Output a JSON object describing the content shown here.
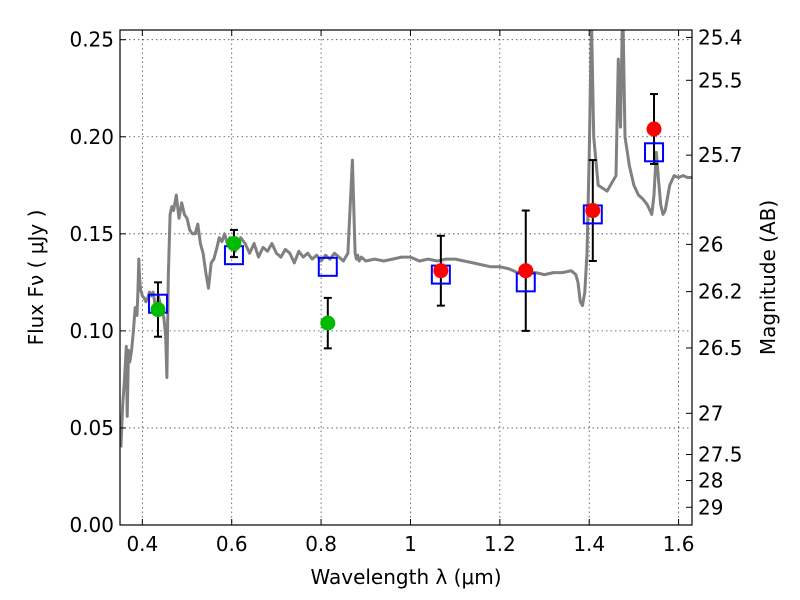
{
  "chart_data": {
    "type": "scatter",
    "title": "",
    "xlabel": "Wavelength  λ (μm)",
    "ylabel": "Flux  Fν  ( μJy )",
    "y2label": "Magnitude (AB)",
    "xlim": [
      0.35,
      1.63
    ],
    "ylim": [
      0.0,
      0.255
    ],
    "grid": true,
    "xticks": [
      {
        "value": 0.4,
        "label": "0.4"
      },
      {
        "value": 0.6,
        "label": "0.6"
      },
      {
        "value": 0.8,
        "label": "0.8"
      },
      {
        "value": 1.0,
        "label": "1"
      },
      {
        "value": 1.2,
        "label": "1.2"
      },
      {
        "value": 1.4,
        "label": "1.4"
      },
      {
        "value": 1.6,
        "label": "1.6"
      }
    ],
    "yticks": [
      {
        "value": 0.0,
        "label": "0.00"
      },
      {
        "value": 0.05,
        "label": "0.05"
      },
      {
        "value": 0.1,
        "label": "0.10"
      },
      {
        "value": 0.15,
        "label": "0.15"
      },
      {
        "value": 0.2,
        "label": "0.20"
      },
      {
        "value": 0.25,
        "label": "0.25"
      }
    ],
    "y2ticks": [
      {
        "value": 25.4,
        "label": "25.4"
      },
      {
        "value": 25.5,
        "label": "25.5"
      },
      {
        "value": 25.7,
        "label": "25.7"
      },
      {
        "value": 26.0,
        "label": "26"
      },
      {
        "value": 26.2,
        "label": "26.2"
      },
      {
        "value": 26.5,
        "label": "26.5"
      },
      {
        "value": 27.0,
        "label": "27"
      },
      {
        "value": 27.5,
        "label": "27.5"
      },
      {
        "value": 28.0,
        "label": "28"
      },
      {
        "value": 29.0,
        "label": "29"
      }
    ],
    "colors": {
      "model": "#808080",
      "model_points": "#0000ff",
      "green_points": "#00bb00",
      "red_points": "#ff0000",
      "errorbars": "#000000"
    },
    "model_spectrum": {
      "name": "",
      "x": [
        0.352,
        0.356,
        0.36,
        0.364,
        0.366,
        0.369,
        0.372,
        0.376,
        0.38,
        0.384,
        0.388,
        0.39,
        0.392,
        0.394,
        0.396,
        0.398,
        0.4,
        0.404,
        0.408,
        0.412,
        0.416,
        0.42,
        0.424,
        0.428,
        0.432,
        0.436,
        0.44,
        0.444,
        0.448,
        0.452,
        0.455,
        0.458,
        0.462,
        0.466,
        0.47,
        0.476,
        0.482,
        0.488,
        0.494,
        0.5,
        0.506,
        0.512,
        0.518,
        0.524,
        0.53,
        0.536,
        0.542,
        0.548,
        0.554,
        0.56,
        0.566,
        0.572,
        0.578,
        0.584,
        0.59,
        0.596,
        0.602,
        0.608,
        0.614,
        0.62,
        0.63,
        0.64,
        0.65,
        0.66,
        0.67,
        0.68,
        0.69,
        0.7,
        0.71,
        0.72,
        0.73,
        0.74,
        0.75,
        0.76,
        0.77,
        0.78,
        0.79,
        0.8,
        0.81,
        0.82,
        0.83,
        0.84,
        0.85,
        0.86,
        0.87,
        0.876,
        0.879,
        0.882,
        0.885,
        0.89,
        0.9,
        0.92,
        0.94,
        0.96,
        0.98,
        1.0,
        1.02,
        1.04,
        1.06,
        1.08,
        1.1,
        1.12,
        1.14,
        1.16,
        1.18,
        1.2,
        1.22,
        1.24,
        1.26,
        1.28,
        1.3,
        1.32,
        1.34,
        1.36,
        1.37,
        1.375,
        1.38,
        1.385,
        1.39,
        1.395,
        1.4,
        1.405,
        1.41,
        1.42,
        1.44,
        1.46,
        1.465,
        1.47,
        1.475,
        1.48,
        1.49,
        1.5,
        1.51,
        1.52,
        1.53,
        1.54,
        1.545,
        1.55,
        1.555,
        1.56,
        1.565,
        1.57,
        1.58,
        1.59,
        1.6,
        1.61,
        1.62,
        1.63
      ],
      "y": [
        0.04,
        0.062,
        0.075,
        0.092,
        0.056,
        0.09,
        0.084,
        0.09,
        0.1,
        0.112,
        0.108,
        0.12,
        0.137,
        0.126,
        0.121,
        0.12,
        0.118,
        0.117,
        0.115,
        0.117,
        0.12,
        0.118,
        0.12,
        0.114,
        0.108,
        0.118,
        0.114,
        0.11,
        0.107,
        0.098,
        0.076,
        0.128,
        0.16,
        0.164,
        0.162,
        0.17,
        0.158,
        0.166,
        0.16,
        0.158,
        0.152,
        0.15,
        0.15,
        0.155,
        0.145,
        0.14,
        0.13,
        0.122,
        0.135,
        0.137,
        0.142,
        0.148,
        0.146,
        0.15,
        0.145,
        0.148,
        0.146,
        0.141,
        0.144,
        0.148,
        0.145,
        0.14,
        0.145,
        0.138,
        0.143,
        0.141,
        0.145,
        0.14,
        0.138,
        0.142,
        0.14,
        0.135,
        0.141,
        0.138,
        0.14,
        0.137,
        0.139,
        0.136,
        0.139,
        0.137,
        0.14,
        0.138,
        0.136,
        0.14,
        0.188,
        0.14,
        0.137,
        0.139,
        0.136,
        0.138,
        0.136,
        0.137,
        0.136,
        0.137,
        0.138,
        0.138,
        0.136,
        0.137,
        0.136,
        0.137,
        0.137,
        0.136,
        0.135,
        0.134,
        0.133,
        0.133,
        0.132,
        0.13,
        0.13,
        0.13,
        0.129,
        0.13,
        0.13,
        0.131,
        0.129,
        0.125,
        0.115,
        0.113,
        0.12,
        0.14,
        0.19,
        0.26,
        0.2,
        0.175,
        0.172,
        0.18,
        0.24,
        0.205,
        0.27,
        0.2,
        0.185,
        0.175,
        0.17,
        0.168,
        0.165,
        0.16,
        0.17,
        0.192,
        0.178,
        0.165,
        0.16,
        0.162,
        0.175,
        0.18,
        0.179,
        0.18,
        0.179,
        0.179
      ]
    },
    "series": [
      {
        "name": "",
        "marker": "square",
        "x": [
          0.435,
          0.605,
          0.815,
          1.068,
          1.258,
          1.408,
          1.545
        ],
        "y": [
          0.114,
          0.139,
          0.133,
          0.129,
          0.125,
          0.16,
          0.192
        ]
      },
      {
        "name": "",
        "marker": "circle",
        "color_key": "green_points",
        "x": [
          0.435,
          0.605,
          0.815
        ],
        "y": [
          0.111,
          0.145,
          0.104
        ],
        "yerr": [
          0.014,
          0.007,
          0.013
        ]
      },
      {
        "name": "",
        "marker": "circle",
        "color_key": "red_points",
        "x": [
          1.068,
          1.258,
          1.408,
          1.545
        ],
        "y": [
          0.131,
          0.131,
          0.162,
          0.204
        ],
        "yerr": [
          0.018,
          0.031,
          0.026,
          0.018
        ]
      }
    ]
  }
}
